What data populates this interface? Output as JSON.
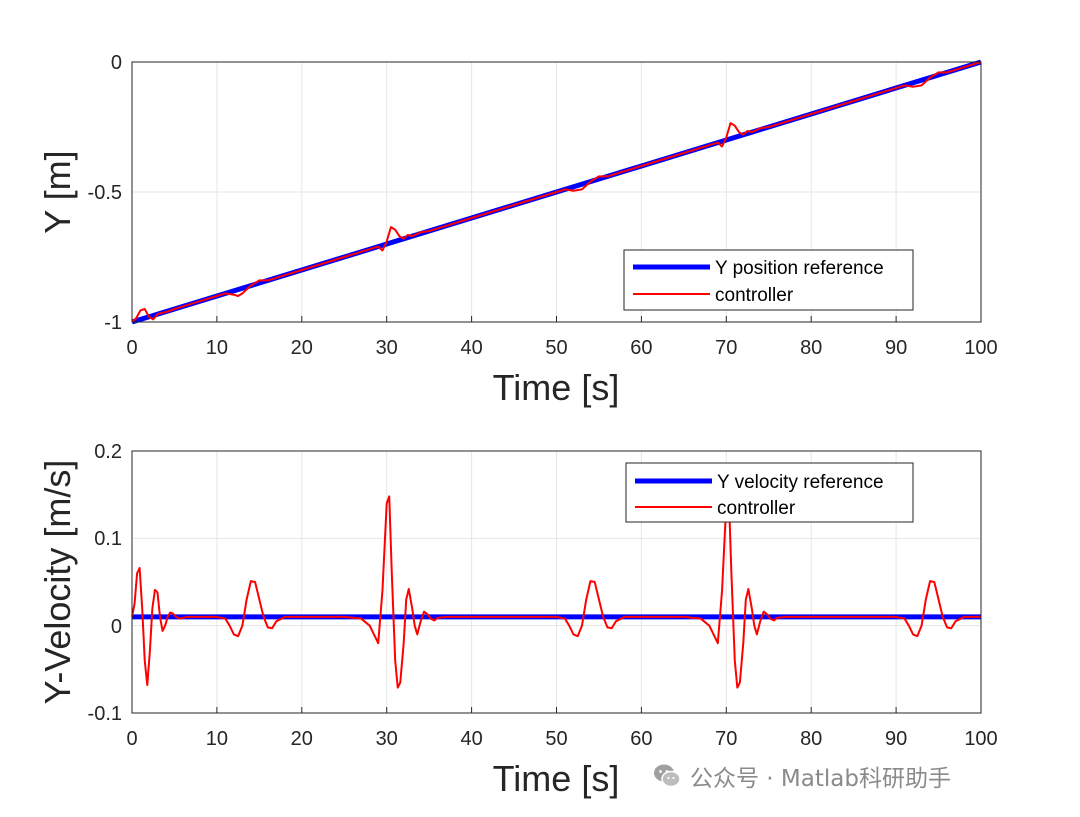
{
  "chart_data": [
    {
      "type": "line",
      "xlabel": "Time [s]",
      "ylabel": "Y [m]",
      "xlim": [
        0,
        100
      ],
      "ylim": [
        -1,
        0
      ],
      "xticks": [
        0,
        10,
        20,
        30,
        40,
        50,
        60,
        70,
        80,
        90,
        100
      ],
      "yticks": [
        -1,
        -0.5,
        0
      ],
      "ytick_labels": [
        "-1",
        "-0.5",
        "0"
      ],
      "grid": true,
      "legend_position": "lower-right",
      "series": [
        {
          "name": "Y position reference",
          "color": "#0000ff",
          "x": [
            0,
            100
          ],
          "y": [
            -1,
            0
          ]
        },
        {
          "name": "controller",
          "color": "#ff0000",
          "x": [
            0,
            0.5,
            1,
            1.5,
            2,
            2.5,
            3,
            3.5,
            4,
            5,
            6,
            8,
            10,
            11,
            12,
            12.5,
            13,
            14,
            15,
            16,
            18,
            20,
            25,
            28,
            29,
            29.5,
            30,
            30.5,
            31,
            31.5,
            32,
            32.5,
            33,
            34,
            35,
            36,
            40,
            45,
            50,
            51,
            52,
            53,
            54,
            55,
            56,
            58,
            60,
            65,
            68,
            69,
            69.5,
            70,
            70.5,
            71,
            71.5,
            72,
            72.5,
            73,
            74,
            75,
            76,
            80,
            85,
            90,
            91,
            92,
            93,
            94,
            95,
            96,
            97,
            100
          ],
          "y": [
            -1,
            -0.985,
            -0.955,
            -0.95,
            -0.98,
            -0.99,
            -0.97,
            -0.965,
            -0.962,
            -0.95,
            -0.94,
            -0.92,
            -0.9,
            -0.89,
            -0.895,
            -0.9,
            -0.89,
            -0.86,
            -0.84,
            -0.84,
            -0.82,
            -0.8,
            -0.75,
            -0.72,
            -0.71,
            -0.725,
            -0.69,
            -0.635,
            -0.645,
            -0.67,
            -0.68,
            -0.665,
            -0.67,
            -0.655,
            -0.65,
            -0.64,
            -0.6,
            -0.55,
            -0.5,
            -0.49,
            -0.495,
            -0.49,
            -0.46,
            -0.44,
            -0.44,
            -0.42,
            -0.4,
            -0.35,
            -0.32,
            -0.31,
            -0.325,
            -0.29,
            -0.235,
            -0.245,
            -0.27,
            -0.28,
            -0.265,
            -0.27,
            -0.255,
            -0.25,
            -0.24,
            -0.2,
            -0.15,
            -0.1,
            -0.09,
            -0.095,
            -0.09,
            -0.06,
            -0.04,
            -0.04,
            -0.03,
            0
          ]
        }
      ]
    },
    {
      "type": "line",
      "xlabel": "Time [s]",
      "ylabel": "Y-Velocity [m/s]",
      "xlim": [
        0,
        100
      ],
      "ylim": [
        -0.1,
        0.2
      ],
      "xticks": [
        0,
        10,
        20,
        30,
        40,
        50,
        60,
        70,
        80,
        90,
        100
      ],
      "yticks": [
        -0.1,
        0,
        0.1,
        0.2
      ],
      "ytick_labels": [
        "-0.1",
        "0",
        "0.1",
        "0.2"
      ],
      "grid": true,
      "legend_position": "top-right",
      "series": [
        {
          "name": "Y velocity reference",
          "color": "#0000ff",
          "x": [
            0,
            100
          ],
          "y": [
            0.01,
            0.01
          ]
        },
        {
          "name": "controller",
          "color": "#ff0000",
          "x": [
            0,
            0.3,
            0.6,
            0.9,
            1.2,
            1.5,
            1.8,
            2.1,
            2.4,
            2.7,
            3.0,
            3.3,
            3.6,
            3.9,
            4.2,
            4.5,
            4.8,
            5.1,
            5.4,
            5.7,
            6.0,
            6.5,
            7,
            10,
            11,
            11.5,
            12,
            12.5,
            13,
            13.5,
            14,
            14.5,
            15,
            15.5,
            16,
            16.5,
            17,
            18,
            25,
            27,
            28,
            28.5,
            29,
            29.5,
            30,
            30.3,
            30.6,
            31,
            31.3,
            31.6,
            32,
            32.3,
            32.6,
            33,
            33.3,
            33.6,
            34,
            34.4,
            34.8,
            35.2,
            35.6,
            36,
            37,
            50,
            51,
            51.5,
            52,
            52.5,
            53,
            53.5,
            54,
            54.5,
            55,
            55.5,
            56,
            56.5,
            57,
            58,
            65,
            67,
            68,
            68.5,
            69,
            69.5,
            70,
            70.3,
            70.6,
            71,
            71.3,
            71.6,
            72,
            72.3,
            72.6,
            73,
            73.3,
            73.6,
            74,
            74.4,
            74.8,
            75.2,
            75.6,
            76,
            77,
            90,
            91,
            91.5,
            92,
            92.5,
            93,
            93.5,
            94,
            94.5,
            95,
            95.5,
            96,
            96.5,
            97,
            98,
            100
          ],
          "y": [
            0.01,
            0.025,
            0.06,
            0.066,
            0.02,
            -0.04,
            -0.068,
            -0.03,
            0.02,
            0.041,
            0.038,
            0.01,
            -0.006,
            0.0,
            0.01,
            0.015,
            0.014,
            0.011,
            0.009,
            0.008,
            0.009,
            0.01,
            0.01,
            0.01,
            0.008,
            0.0,
            -0.01,
            -0.012,
            0.0,
            0.03,
            0.051,
            0.05,
            0.03,
            0.01,
            -0.002,
            -0.003,
            0.005,
            0.01,
            0.01,
            0.008,
            0.0,
            -0.01,
            -0.02,
            0.04,
            0.14,
            0.148,
            0.06,
            -0.04,
            -0.071,
            -0.065,
            -0.02,
            0.03,
            0.042,
            0.02,
            0.0,
            -0.01,
            0.005,
            0.016,
            0.013,
            0.008,
            0.006,
            0.009,
            0.01,
            0.01,
            0.008,
            0.0,
            -0.01,
            -0.012,
            0.0,
            0.03,
            0.051,
            0.05,
            0.03,
            0.01,
            -0.002,
            -0.003,
            0.005,
            0.01,
            0.01,
            0.008,
            0.0,
            -0.01,
            -0.02,
            0.04,
            0.14,
            0.148,
            0.06,
            -0.04,
            -0.071,
            -0.065,
            -0.02,
            0.03,
            0.042,
            0.02,
            0.0,
            -0.01,
            0.005,
            0.016,
            0.013,
            0.008,
            0.006,
            0.009,
            0.01,
            0.01,
            0.008,
            0.0,
            -0.01,
            -0.012,
            0.0,
            0.03,
            0.051,
            0.05,
            0.03,
            0.01,
            -0.002,
            -0.003,
            0.005,
            0.01,
            0.01
          ]
        }
      ]
    }
  ],
  "watermark": {
    "icon": "wechat-icon",
    "text": "公众号 · Matlab科研助手"
  }
}
